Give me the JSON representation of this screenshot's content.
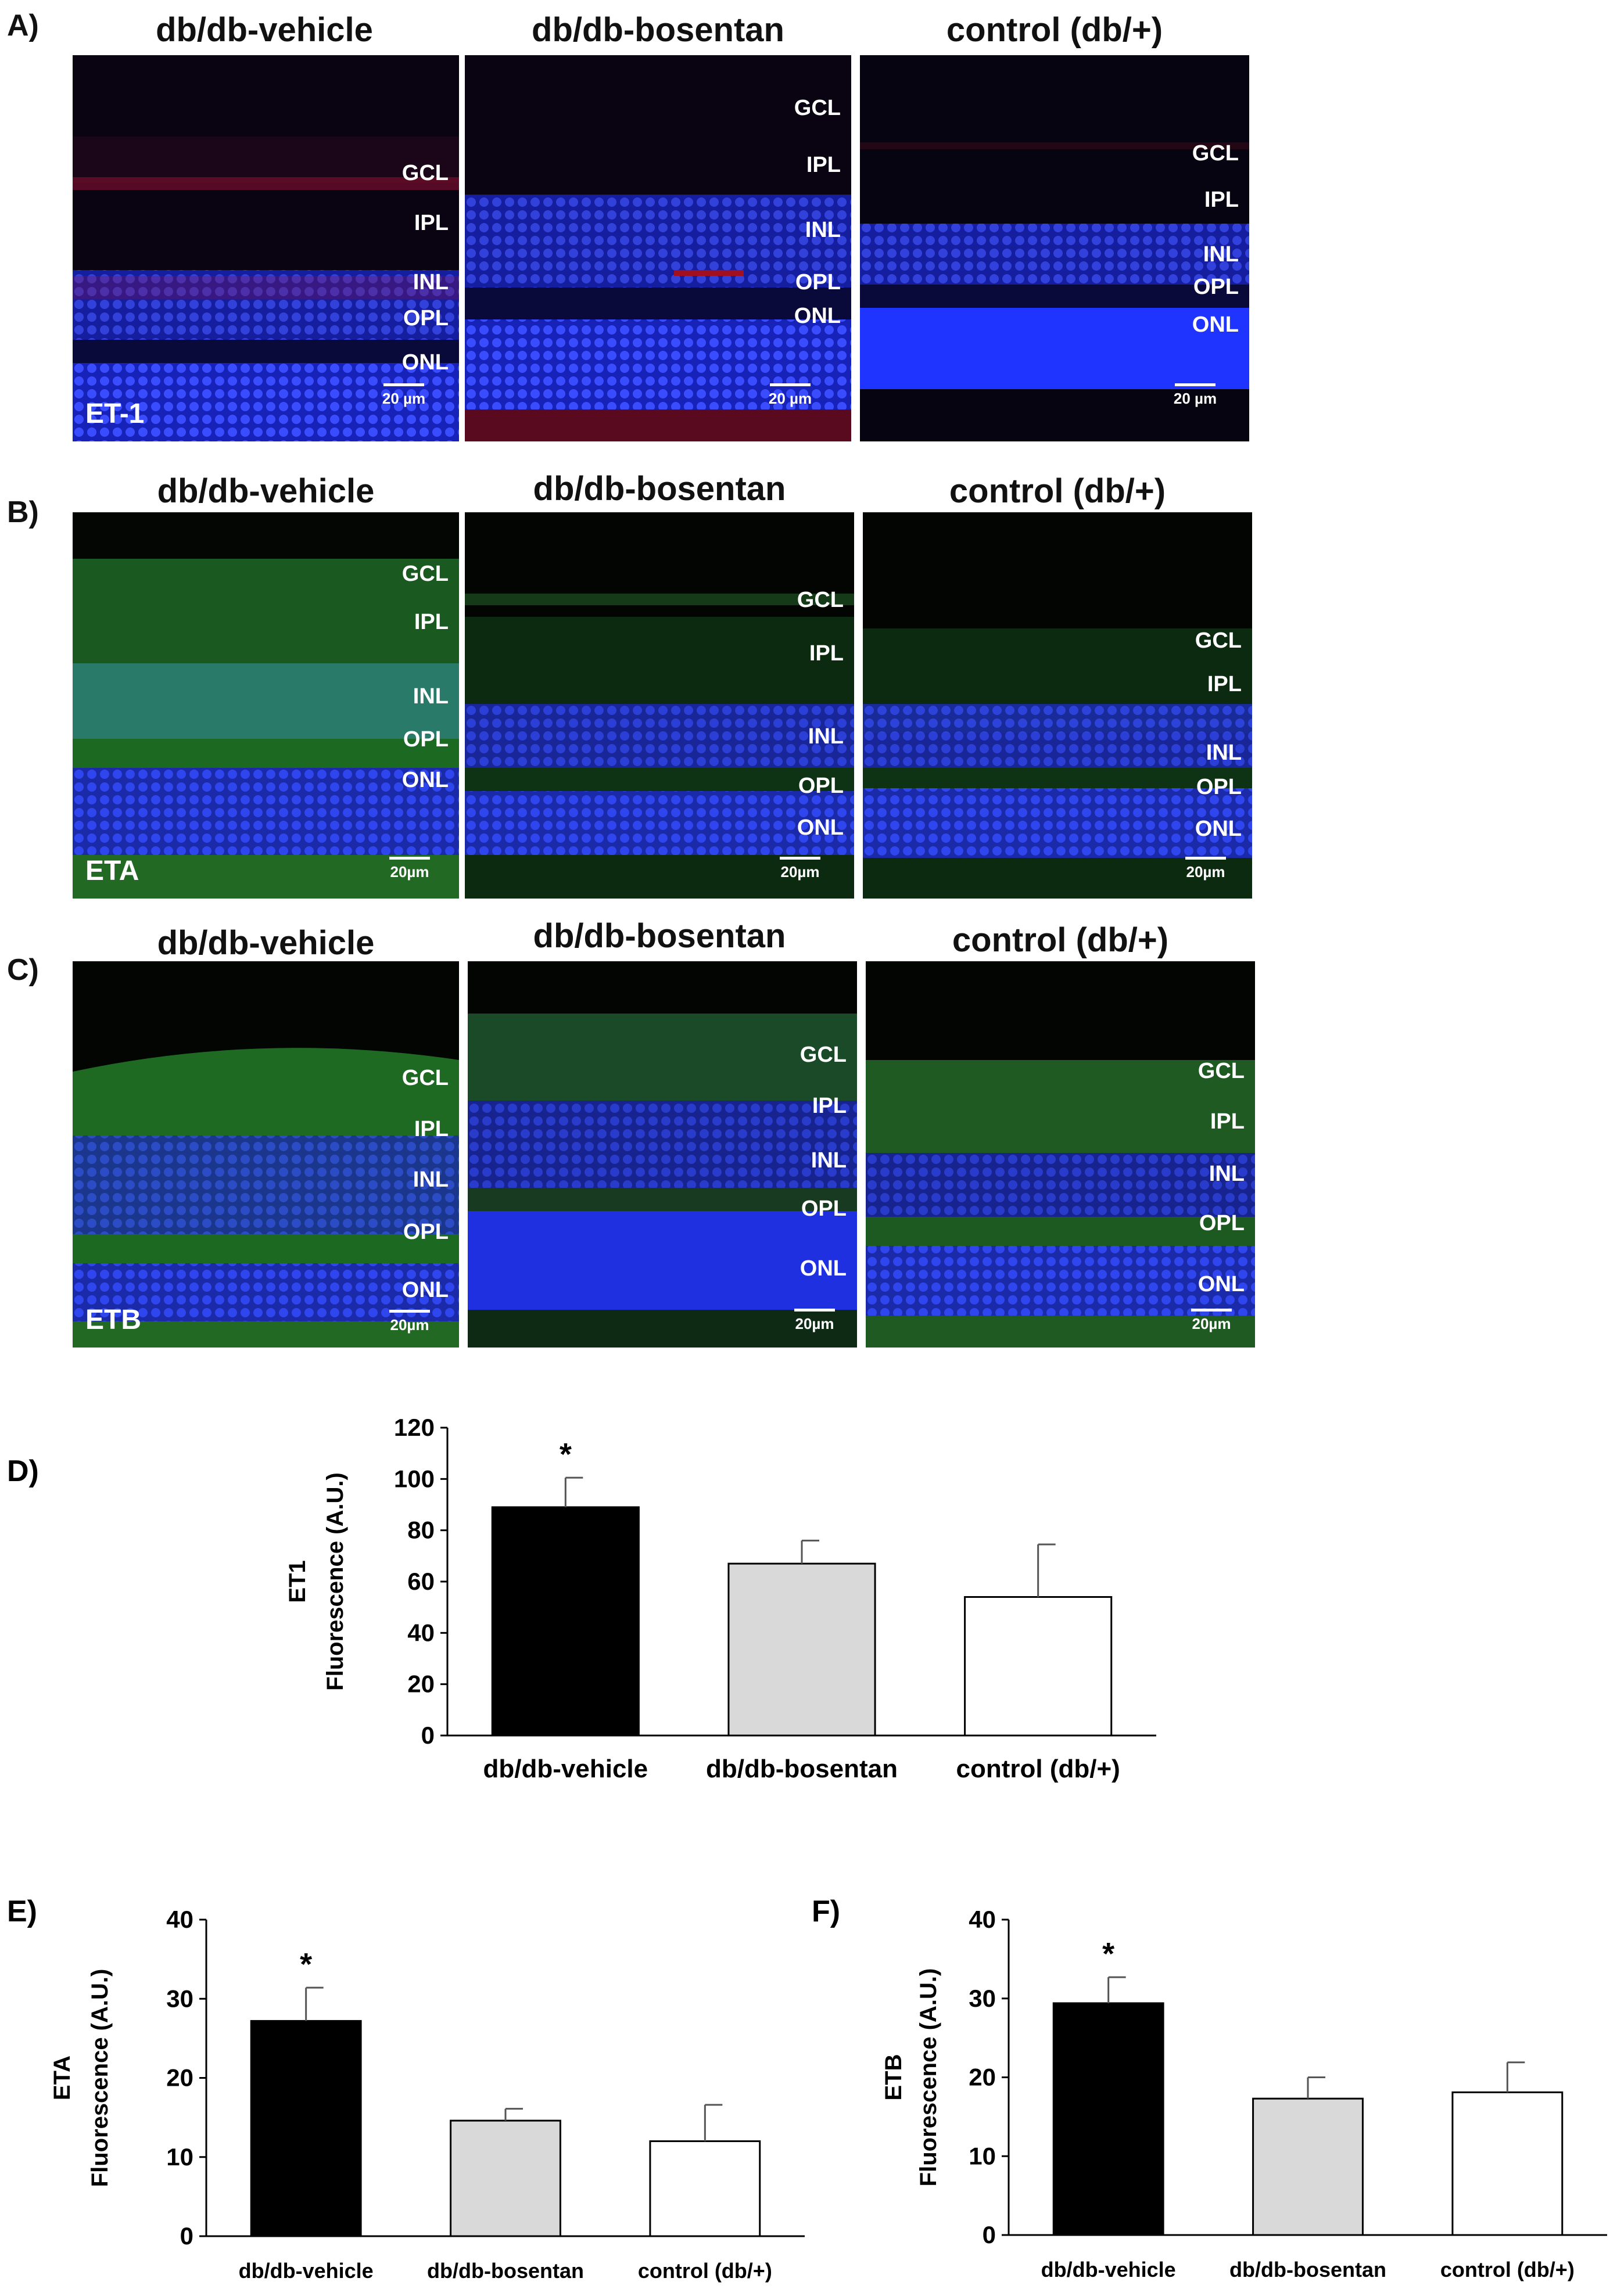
{
  "panels": {
    "A": {
      "letter": "A)",
      "stain": "ET-1",
      "columns": [
        {
          "title": "db/db-vehicle",
          "layers": [
            "GCL",
            "IPL",
            "INL",
            "OPL",
            "ONL"
          ],
          "scale": "20 µm"
        },
        {
          "title": "db/db-bosentan",
          "layers": [
            "GCL",
            "IPL",
            "INL",
            "OPL",
            "ONL"
          ],
          "scale": "20 µm"
        },
        {
          "title": "control (db/+)",
          "layers": [
            "GCL",
            "IPL",
            "INL",
            "OPL",
            "ONL"
          ],
          "scale": "20 µm"
        }
      ]
    },
    "B": {
      "letter": "B)",
      "stain": "ETA",
      "columns": [
        {
          "title": "db/db-vehicle",
          "layers": [
            "GCL",
            "IPL",
            "INL",
            "OPL",
            "ONL"
          ],
          "scale": "20µm"
        },
        {
          "title": "db/db-bosentan",
          "layers": [
            "GCL",
            "IPL",
            "INL",
            "OPL",
            "ONL"
          ],
          "scale": "20µm"
        },
        {
          "title": "control (db/+)",
          "layers": [
            "GCL",
            "IPL",
            "INL",
            "OPL",
            "ONL"
          ],
          "scale": "20µm"
        }
      ]
    },
    "C": {
      "letter": "C)",
      "stain": "ETB",
      "columns": [
        {
          "title": "db/db-vehicle",
          "layers": [
            "GCL",
            "IPL",
            "INL",
            "OPL",
            "ONL"
          ],
          "scale": "20µm"
        },
        {
          "title": "db/db-bosentan",
          "layers": [
            "GCL",
            "IPL",
            "INL",
            "OPL",
            "ONL"
          ],
          "scale": "20µm"
        },
        {
          "title": "control (db/+)",
          "layers": [
            "GCL",
            "IPL",
            "INL",
            "OPL",
            "ONL"
          ],
          "scale": "20µm"
        }
      ]
    }
  },
  "colors": {
    "nuclei": "#1a2cff",
    "et1_stain": "#d01030",
    "receptor_stain": "#2fa82f",
    "bar_vehicle": "#000000",
    "bar_bosentan": "#d9d9d9",
    "bar_control": "#ffffff"
  },
  "chart_data": [
    {
      "panel": "D)",
      "type": "bar",
      "categories": [
        "db/db-vehicle",
        "db/db-bosentan",
        "control (db/+)"
      ],
      "values": [
        89,
        67,
        54
      ],
      "errors": [
        11.5,
        9,
        20.5
      ],
      "significance": [
        "*",
        "",
        ""
      ],
      "ylabel_line1": "ET1",
      "ylabel_line2": "Fluorescence (A.U.)",
      "ylim": [
        0,
        120
      ],
      "yticks": [
        "0",
        "20",
        "40",
        "60",
        "80",
        "100",
        "120"
      ]
    },
    {
      "panel": "E)",
      "type": "bar",
      "categories": [
        "db/db-vehicle",
        "db/db-bosentan",
        "control (db/+)"
      ],
      "values": [
        27.2,
        14.6,
        12
      ],
      "errors": [
        4.2,
        1.5,
        4.6
      ],
      "significance": [
        "*",
        "",
        ""
      ],
      "ylabel_line1": "ETA",
      "ylabel_line2": "Fluorescence (A.U.)",
      "ylim": [
        0,
        40
      ],
      "yticks": [
        "0",
        "10",
        "20",
        "30",
        "40"
      ]
    },
    {
      "panel": "F)",
      "type": "bar",
      "categories": [
        "db/db-vehicle",
        "db/db-bosentan",
        "control (db/+)"
      ],
      "values": [
        29.4,
        17.3,
        18.1
      ],
      "errors": [
        3.3,
        2.7,
        3.8
      ],
      "significance": [
        "*",
        "",
        ""
      ],
      "ylabel_line1": "ETB",
      "ylabel_line2": "Fluorescence (A.U.)",
      "ylim": [
        0,
        40
      ],
      "yticks": [
        "0",
        "10",
        "20",
        "30",
        "40"
      ]
    }
  ]
}
